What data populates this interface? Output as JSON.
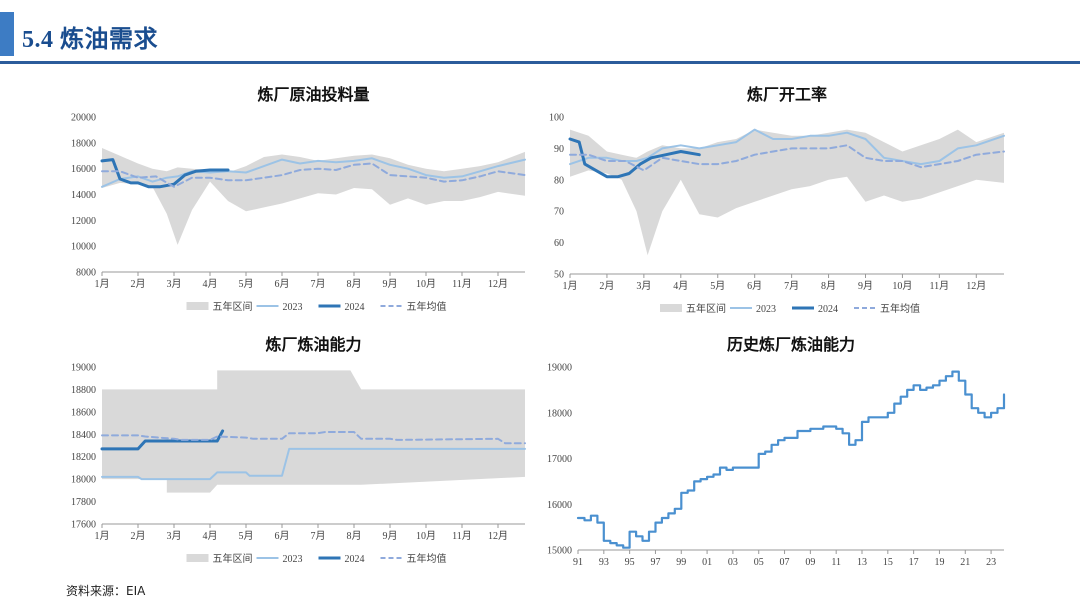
{
  "header": {
    "title": "5.4 炼油需求"
  },
  "source": "资料来源：EIA",
  "colors": {
    "band": "#d9d9d9",
    "y2023": "#9cc3e6",
    "y2024": "#2e75b6",
    "avg": "#8faadc",
    "hist": "#4a90d0",
    "accent": "#3d7cc4"
  },
  "chart_data": [
    {
      "type": "line",
      "title": "炼厂原油投料量",
      "x_labels": [
        "1月",
        "2月",
        "3月",
        "4月",
        "5月",
        "6月",
        "7月",
        "8月",
        "9月",
        "10月",
        "11月",
        "12月"
      ],
      "xlim": [
        1,
        12.75
      ],
      "ylim": [
        8000,
        20000
      ],
      "y_ticks": [
        8000,
        10000,
        12000,
        14000,
        16000,
        18000,
        20000
      ],
      "legend": [
        "五年区间",
        "2023",
        "2024",
        "五年均值"
      ],
      "band": {
        "x": [
          1,
          1.5,
          2,
          2.4,
          2.8,
          3.1,
          3.5,
          4,
          4.5,
          5,
          5.5,
          6,
          6.5,
          7,
          7.5,
          8,
          8.5,
          9,
          9.5,
          10,
          10.5,
          11,
          11.5,
          12,
          12.75
        ],
        "upper": [
          17600,
          17000,
          16400,
          16000,
          15800,
          16100,
          16000,
          15900,
          15700,
          16200,
          16900,
          17100,
          16900,
          16600,
          16800,
          17000,
          17100,
          16800,
          16300,
          16000,
          15800,
          16000,
          16200,
          16500,
          17300
        ],
        "lower": [
          14500,
          14900,
          14800,
          14600,
          12500,
          10100,
          12800,
          15000,
          13500,
          12700,
          13000,
          13300,
          13700,
          14100,
          14000,
          14500,
          14400,
          13200,
          13700,
          13200,
          13500,
          13500,
          13800,
          14200,
          13900
        ]
      },
      "series": [
        {
          "name": "2023",
          "x": [
            1,
            1.5,
            2,
            2.4,
            2.8,
            3.1,
            3.5,
            4,
            4.5,
            5,
            5.5,
            6,
            6.5,
            7,
            7.5,
            8,
            8.5,
            9,
            9.5,
            10,
            10.5,
            11,
            11.5,
            12,
            12.75
          ],
          "y": [
            14600,
            15200,
            15400,
            15000,
            15300,
            15400,
            15800,
            15700,
            15800,
            15700,
            16200,
            16700,
            16400,
            16600,
            16500,
            16600,
            16800,
            16300,
            16000,
            15500,
            15300,
            15400,
            15800,
            16200,
            16700
          ]
        },
        {
          "name": "2024",
          "x": [
            1,
            1.3,
            1.5,
            1.8,
            2,
            2.3,
            2.6,
            3,
            3.3,
            3.6,
            4,
            4.5
          ],
          "y": [
            16600,
            16700,
            15200,
            14900,
            14900,
            14600,
            14600,
            14800,
            15500,
            15800,
            15900,
            15900
          ]
        },
        {
          "name": "五年均值",
          "x": [
            1,
            1.5,
            2,
            2.5,
            3,
            3.5,
            4,
            4.5,
            5,
            5.5,
            6,
            6.5,
            7,
            7.5,
            8,
            8.5,
            9,
            9.5,
            10,
            10.5,
            11,
            11.5,
            12,
            12.75
          ],
          "y": [
            15800,
            15800,
            15300,
            15400,
            14600,
            15300,
            15300,
            15100,
            15100,
            15300,
            15500,
            15900,
            16000,
            15900,
            16300,
            16400,
            15500,
            15400,
            15300,
            15000,
            15100,
            15400,
            15800,
            15500
          ]
        }
      ]
    },
    {
      "type": "line",
      "title": "炼厂开工率",
      "x_labels": [
        "1月",
        "2月",
        "3月",
        "4月",
        "5月",
        "6月",
        "7月",
        "8月",
        "9月",
        "10月",
        "11月",
        "12月"
      ],
      "xlim": [
        1,
        12.75
      ],
      "ylim": [
        50,
        100
      ],
      "y_ticks": [
        50,
        60,
        70,
        80,
        90,
        100
      ],
      "legend": [
        "五年区间",
        "2023",
        "2024",
        "五年均值"
      ],
      "band": {
        "x": [
          1,
          1.5,
          2,
          2.4,
          2.8,
          3.1,
          3.5,
          4,
          4.5,
          5,
          5.5,
          6,
          6.5,
          7,
          7.5,
          8,
          8.5,
          9,
          9.5,
          10,
          10.5,
          11,
          11.5,
          12,
          12.75
        ],
        "upper": [
          96,
          94,
          89,
          88,
          87,
          89,
          91,
          90,
          90,
          92,
          93,
          96,
          95,
          94,
          94,
          95,
          96,
          95,
          92,
          89,
          91,
          93,
          96,
          92,
          95
        ],
        "lower": [
          81,
          83,
          82,
          80,
          70,
          56,
          70,
          80,
          69,
          68,
          71,
          73,
          75,
          77,
          78,
          80,
          81,
          73,
          75,
          73,
          74,
          76,
          78,
          80,
          79
        ]
      },
      "series": [
        {
          "name": "2023",
          "x": [
            1,
            1.5,
            2,
            2.4,
            2.8,
            3.1,
            3.5,
            4,
            4.5,
            5,
            5.5,
            6,
            6.5,
            7,
            7.5,
            8,
            8.5,
            9,
            9.5,
            10,
            10.5,
            11,
            11.5,
            12,
            12.75
          ],
          "y": [
            85,
            87,
            87,
            86,
            86,
            87,
            90,
            91,
            90,
            91,
            92,
            96,
            93,
            93,
            94,
            94,
            95,
            93,
            87,
            86,
            85,
            86,
            90,
            91,
            94
          ]
        },
        {
          "name": "2024",
          "x": [
            1,
            1.25,
            1.4,
            1.7,
            2,
            2.3,
            2.6,
            2.9,
            3.2,
            3.6,
            4,
            4.5
          ],
          "y": [
            93,
            92,
            85,
            83,
            81,
            81,
            82,
            85,
            87,
            88,
            89,
            88
          ]
        },
        {
          "name": "五年均值",
          "x": [
            1,
            1.5,
            2,
            2.5,
            3,
            3.5,
            4,
            4.5,
            5,
            5.5,
            6,
            6.5,
            7,
            7.5,
            8,
            8.5,
            9,
            9.5,
            10,
            10.5,
            11,
            11.5,
            12,
            12.75
          ],
          "y": [
            88,
            88,
            86,
            86,
            83,
            87,
            86,
            85,
            85,
            86,
            88,
            89,
            90,
            90,
            90,
            91,
            87,
            86,
            86,
            84,
            85,
            86,
            88,
            89
          ]
        }
      ]
    },
    {
      "type": "line",
      "title": "炼厂炼油能力",
      "x_labels": [
        "1月",
        "2月",
        "3月",
        "4月",
        "5月",
        "6月",
        "7月",
        "8月",
        "9月",
        "10月",
        "11月",
        "12月"
      ],
      "xlim": [
        1,
        12.75
      ],
      "ylim": [
        17600,
        19000
      ],
      "y_ticks": [
        17600,
        17800,
        18000,
        18200,
        18400,
        18600,
        18800,
        19000
      ],
      "legend": [
        "五年区间",
        "2023",
        "2024",
        "五年均值"
      ],
      "band": {
        "x": [
          1,
          2,
          2.8,
          2.8,
          4,
          4.2,
          4.2,
          7.9,
          7.9,
          8.2,
          8.2,
          12.75
        ],
        "upper": [
          18800,
          18800,
          18800,
          18800,
          18800,
          18800,
          18970,
          18970,
          18970,
          18800,
          18800,
          18800
        ],
        "lower": [
          18000,
          18000,
          18000,
          17880,
          17880,
          17950,
          17950,
          17950,
          17950,
          17950,
          17950,
          18020
        ]
      },
      "series": [
        {
          "name": "2023",
          "x": [
            1,
            2,
            2.1,
            3,
            3.2,
            4,
            4.2,
            5,
            5.1,
            6,
            6.2,
            12.75
          ],
          "y": [
            18020,
            18020,
            18000,
            18000,
            18000,
            18000,
            18060,
            18060,
            18030,
            18030,
            18270,
            18270
          ]
        },
        {
          "name": "2024",
          "x": [
            1,
            2,
            2.2,
            4,
            4.2,
            4.35
          ],
          "y": [
            18270,
            18270,
            18340,
            18340,
            18340,
            18430
          ]
        },
        {
          "name": "五年均值",
          "x": [
            1,
            2,
            2.2,
            3,
            3.2,
            4,
            4.2,
            5,
            5.2,
            6,
            6.2,
            7,
            7.2,
            8,
            8.2,
            9,
            9.2,
            12,
            12.2,
            12.75
          ],
          "y": [
            18390,
            18390,
            18380,
            18360,
            18350,
            18350,
            18380,
            18370,
            18360,
            18360,
            18410,
            18410,
            18420,
            18420,
            18360,
            18360,
            18350,
            18360,
            18320,
            18320
          ]
        }
      ]
    },
    {
      "type": "line",
      "title": "历史炼厂炼油能力",
      "x_labels": [
        "91",
        "93",
        "95",
        "97",
        "99",
        "01",
        "03",
        "05",
        "07",
        "09",
        "11",
        "13",
        "15",
        "17",
        "19",
        "21",
        "23"
      ],
      "xlim": [
        1991,
        2024
      ],
      "ylim": [
        15000,
        19000
      ],
      "y_ticks": [
        15000,
        16000,
        17000,
        18000,
        19000
      ],
      "series": [
        {
          "name": "history",
          "x": [
            1991,
            1991.5,
            1992,
            1992.5,
            1993,
            1993.5,
            1994,
            1994.5,
            1995,
            1995.5,
            1996,
            1996.5,
            1997,
            1997.5,
            1998,
            1998.5,
            1999,
            1999.5,
            2000,
            2000.5,
            2001,
            2001.5,
            2002,
            2002.5,
            2003,
            2004,
            2005,
            2005.5,
            2006,
            2006.5,
            2007,
            2008,
            2009,
            2010,
            2011,
            2011.5,
            2012,
            2012.5,
            2013,
            2013.5,
            2014,
            2015,
            2015.5,
            2016,
            2016.5,
            2017,
            2017.5,
            2018,
            2018.5,
            2019,
            2019.5,
            2020,
            2020.5,
            2021,
            2021.5,
            2022,
            2022.5,
            2023,
            2023.5,
            2024
          ],
          "y": [
            15700,
            15650,
            15750,
            15600,
            15200,
            15150,
            15100,
            15050,
            15400,
            15300,
            15200,
            15400,
            15600,
            15700,
            15800,
            15900,
            16250,
            16300,
            16500,
            16550,
            16600,
            16650,
            16800,
            16750,
            16800,
            16800,
            17100,
            17150,
            17300,
            17400,
            17450,
            17600,
            17650,
            17700,
            17650,
            17550,
            17300,
            17400,
            17800,
            17900,
            17900,
            18000,
            18200,
            18350,
            18500,
            18600,
            18500,
            18550,
            18600,
            18700,
            18800,
            18900,
            18700,
            18400,
            18100,
            18000,
            17900,
            18000,
            18100,
            18400
          ]
        }
      ]
    }
  ]
}
